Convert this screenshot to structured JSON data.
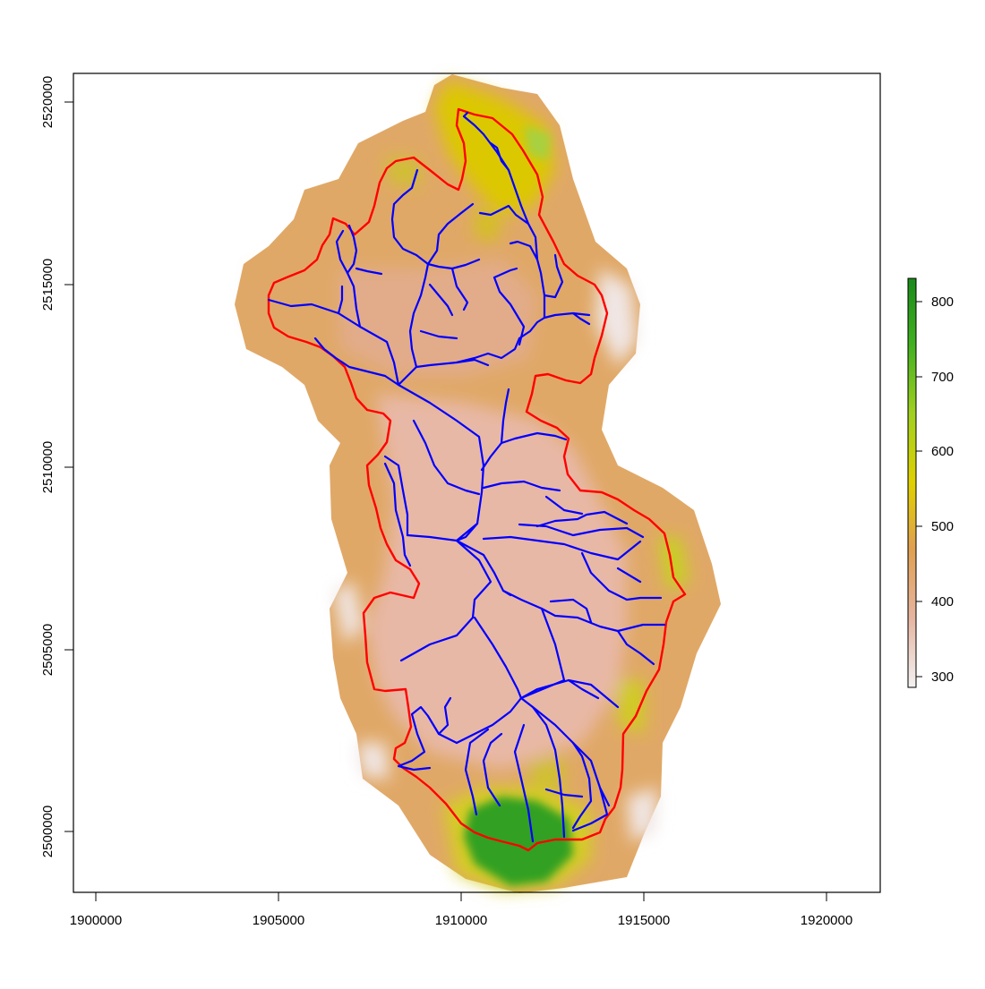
{
  "map": {
    "x_ticks": [
      "1900000",
      "1905000",
      "1910000",
      "1915000",
      "1920000"
    ],
    "y_ticks": [
      "2500000",
      "2505000",
      "2510000",
      "2515000",
      "2520000"
    ],
    "legend": {
      "ticks": [
        "300",
        "400",
        "500",
        "600",
        "700",
        "800"
      ],
      "min": 285,
      "max": 830,
      "stops": [
        {
          "value": 285,
          "color": "#f2f2f2"
        },
        {
          "value": 380,
          "color": "#e6b4a0"
        },
        {
          "value": 470,
          "color": "#e0a050"
        },
        {
          "value": 560,
          "color": "#e0d000"
        },
        {
          "value": 650,
          "color": "#a0d020"
        },
        {
          "value": 740,
          "color": "#40b020"
        },
        {
          "value": 830,
          "color": "#1a8a1a"
        }
      ]
    },
    "colors": {
      "watershed_boundary": "#ff0000",
      "stream_network": "#0000ff",
      "frame": "#000000"
    }
  }
}
